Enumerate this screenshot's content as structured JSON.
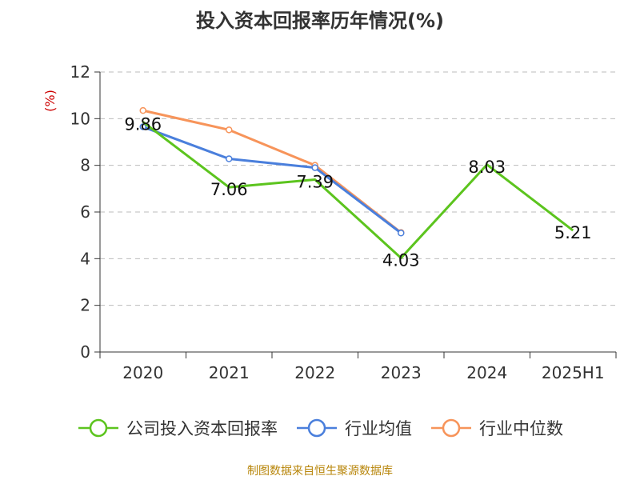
{
  "title": "投入资本回报率历年情况(%)",
  "source_note": "制图数据来自恒生聚源数据库",
  "colors": {
    "company": "#5cc41e",
    "industry_avg": "#4a7fdc",
    "industry_median": "#f7945a",
    "axis": "#333333",
    "grid": "#bbbbbb",
    "ylabel": "#cc0000"
  },
  "chart_data": {
    "type": "line",
    "title": "投入资本回报率历年情况(%)",
    "xlabel": "",
    "ylabel": "(%)",
    "ylim": [
      0,
      12
    ],
    "yticks": [
      0,
      2,
      4,
      6,
      8,
      10,
      12
    ],
    "categories": [
      "2020",
      "2021",
      "2022",
      "2023",
      "2024",
      "2025H1"
    ],
    "grid": true,
    "legend_position": "bottom",
    "series": [
      {
        "key": "company",
        "name": "公司投入资本回报率",
        "values": [
          9.86,
          7.06,
          7.39,
          4.03,
          8.03,
          5.21
        ],
        "labels": [
          "9.86",
          "7.06",
          "7.39",
          "4.03",
          "8.03",
          "5.21"
        ],
        "show_labels": true,
        "show_markers": false
      },
      {
        "key": "industry_avg",
        "name": "行业均值",
        "values": [
          9.65,
          8.28,
          7.9,
          5.1,
          null,
          null
        ],
        "show_labels": false,
        "show_markers": true
      },
      {
        "key": "industry_median",
        "name": "行业中位数",
        "values": [
          10.35,
          9.52,
          8.0,
          5.12,
          null,
          null
        ],
        "show_labels": false,
        "show_markers": true
      }
    ]
  }
}
